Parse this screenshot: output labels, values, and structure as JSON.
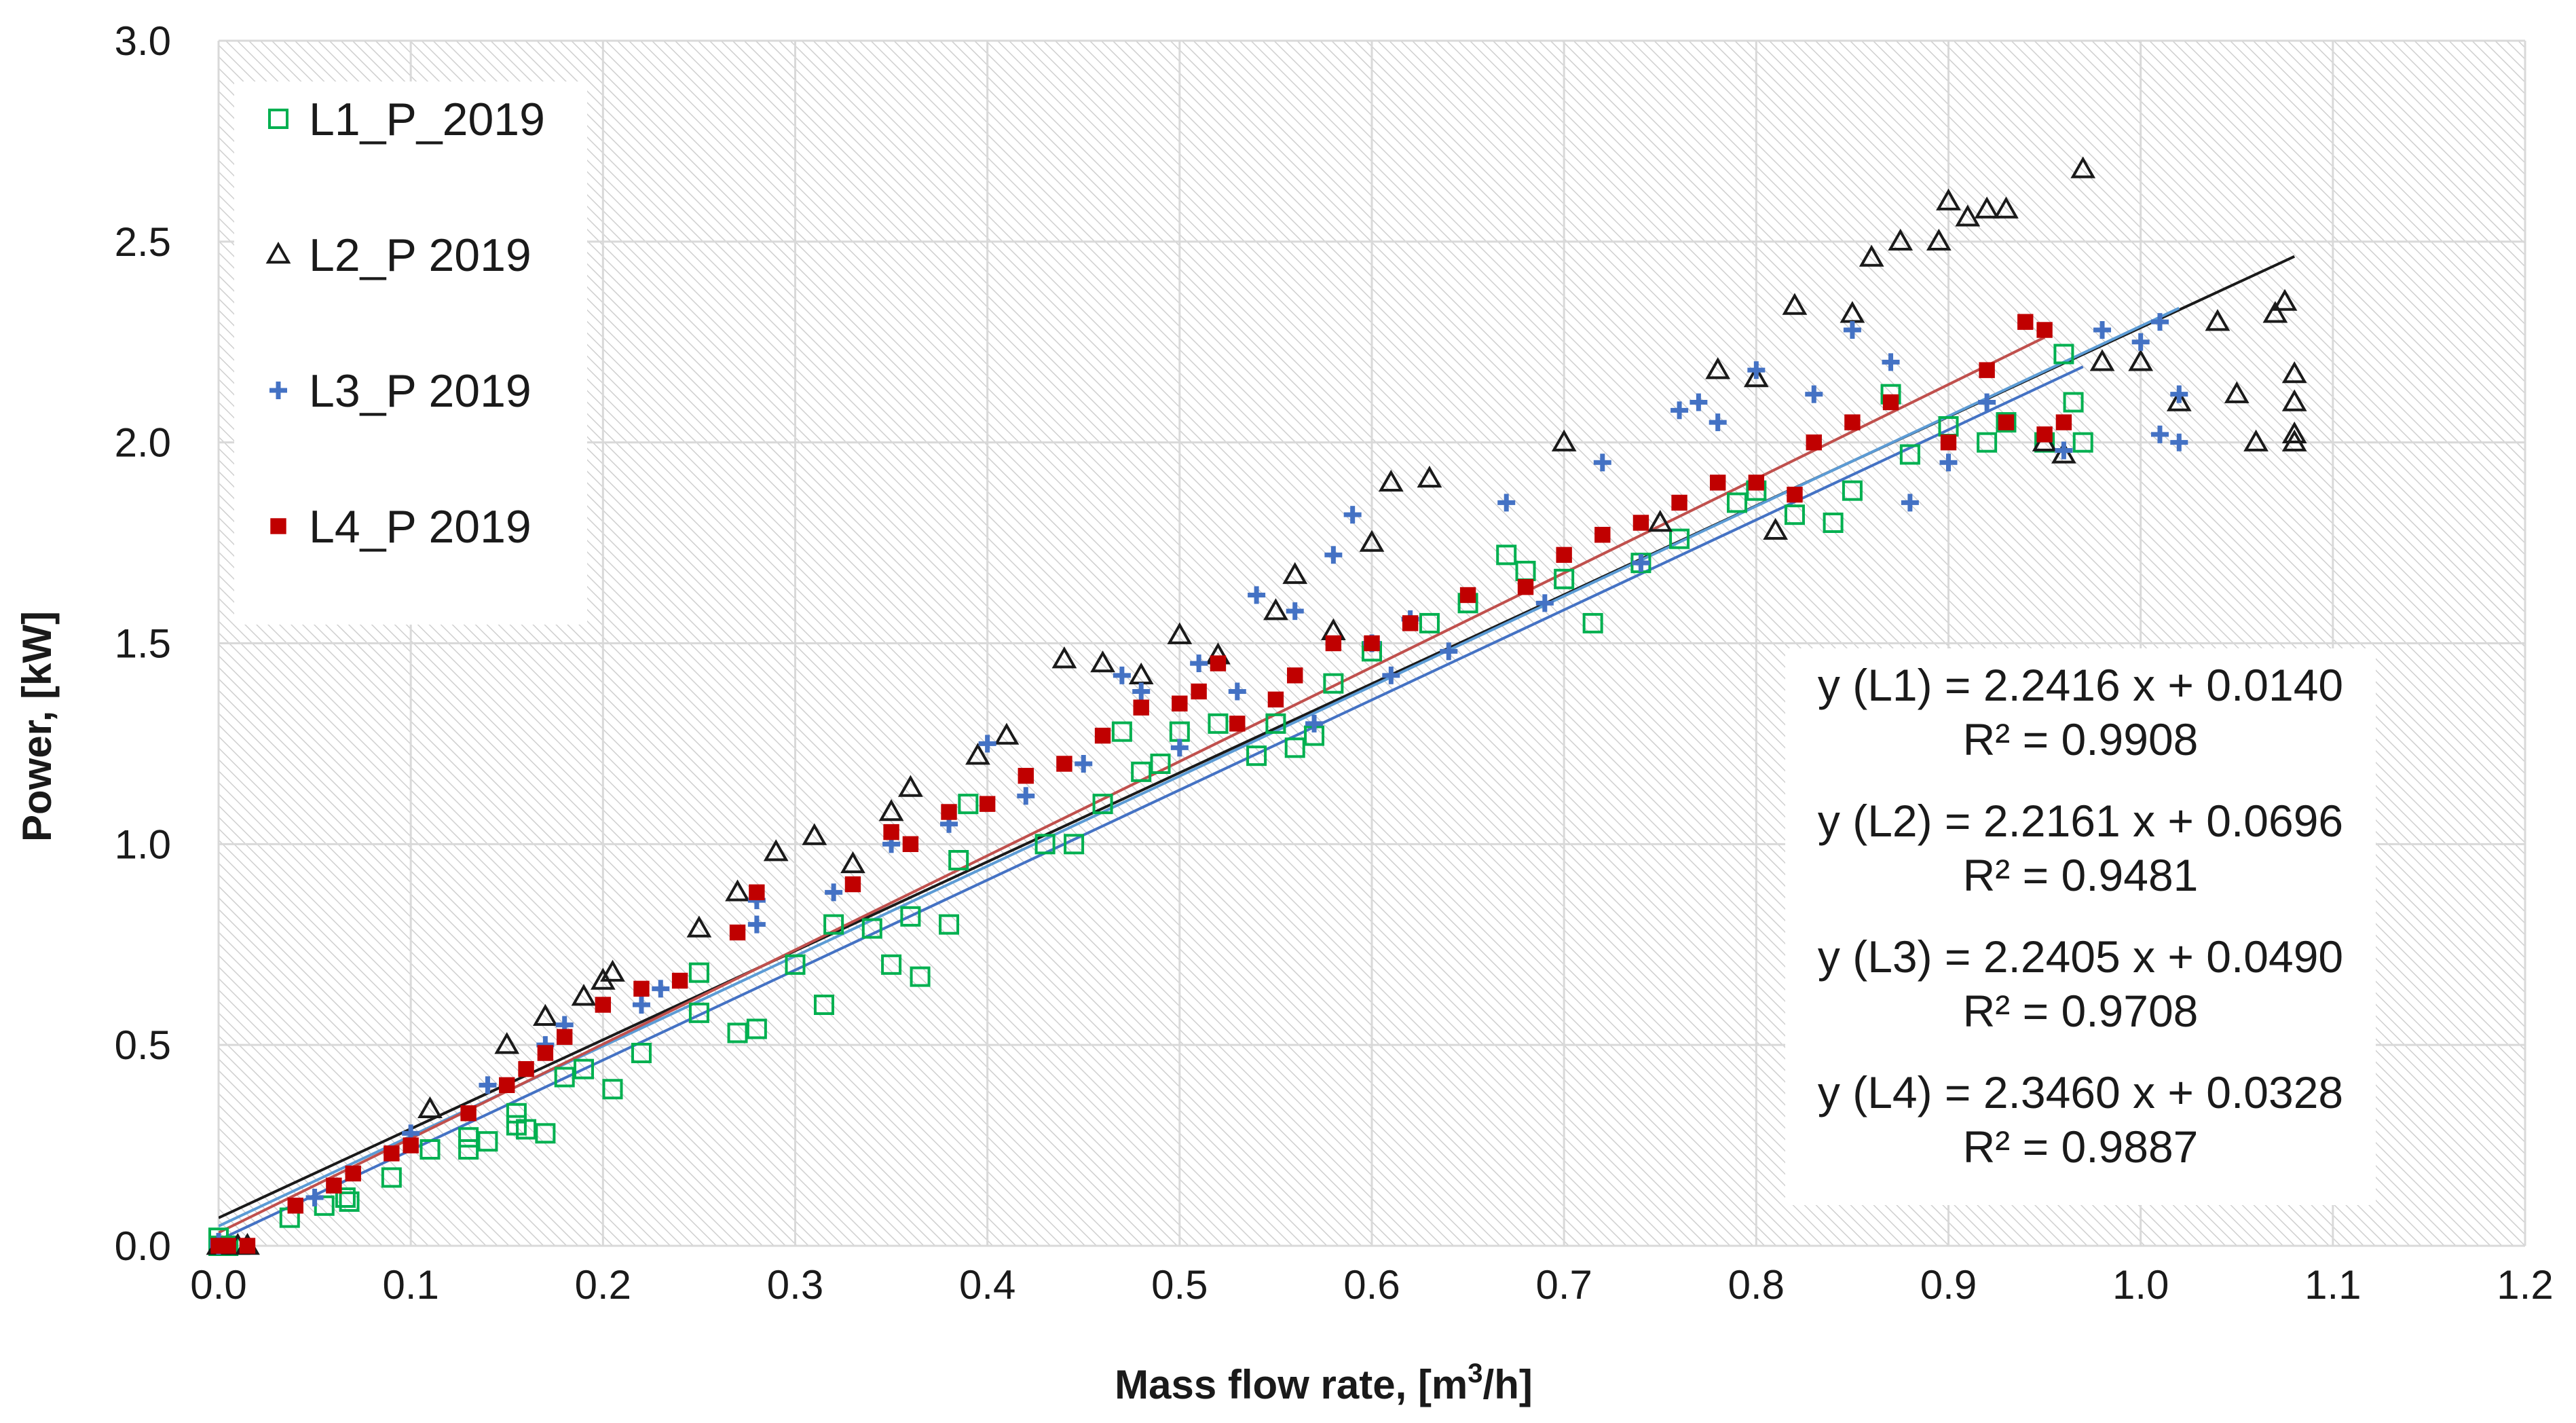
{
  "chart_data": {
    "type": "scatter",
    "title": "",
    "xlabel": "Mass flow rate, [m",
    "xlabel_sup": "3",
    "xlabel_end": "/h]",
    "ylabel": "Power, [kW]",
    "xlim": [
      0,
      1.2
    ],
    "ylim": [
      0,
      3.0
    ],
    "x_ticks": [
      "0.0",
      "0.1",
      "0.2",
      "0.3",
      "0.4",
      "0.5",
      "0.6",
      "0.7",
      "0.8",
      "0.9",
      "1.0",
      "1.1",
      "1.2"
    ],
    "y_ticks": [
      "0.0",
      "0.5",
      "1.0",
      "1.5",
      "2.0",
      "2.5",
      "3.0"
    ],
    "grid": true,
    "legend_position": "top-left",
    "series": [
      {
        "name": "L1_P_2019",
        "marker": "square-open",
        "color": "#00b050",
        "fit": {
          "slope": 2.2416,
          "intercept": 0.014,
          "x_range": [
            0,
            0.97
          ],
          "line_color": "#4472c4"
        },
        "equation": "y (L1) = 2.2416 x + 0.0140",
        "r2": "R² = 0.9908",
        "points": [
          [
            0.0,
            0.0
          ],
          [
            0.0,
            0.02
          ],
          [
            0.005,
            0.0
          ],
          [
            0.037,
            0.07
          ],
          [
            0.055,
            0.1
          ],
          [
            0.066,
            0.12
          ],
          [
            0.068,
            0.11
          ],
          [
            0.09,
            0.17
          ],
          [
            0.11,
            0.24
          ],
          [
            0.13,
            0.24
          ],
          [
            0.13,
            0.27
          ],
          [
            0.14,
            0.26
          ],
          [
            0.155,
            0.33
          ],
          [
            0.155,
            0.3
          ],
          [
            0.16,
            0.29
          ],
          [
            0.17,
            0.28
          ],
          [
            0.18,
            0.42
          ],
          [
            0.19,
            0.44
          ],
          [
            0.205,
            0.39
          ],
          [
            0.22,
            0.48
          ],
          [
            0.25,
            0.58
          ],
          [
            0.25,
            0.68
          ],
          [
            0.27,
            0.53
          ],
          [
            0.28,
            0.54
          ],
          [
            0.3,
            0.7
          ],
          [
            0.315,
            0.6
          ],
          [
            0.32,
            0.8
          ],
          [
            0.34,
            0.79
          ],
          [
            0.35,
            0.7
          ],
          [
            0.36,
            0.82
          ],
          [
            0.365,
            0.67
          ],
          [
            0.38,
            0.8
          ],
          [
            0.385,
            0.96
          ],
          [
            0.39,
            1.1
          ],
          [
            0.43,
            1.0
          ],
          [
            0.445,
            1.0
          ],
          [
            0.46,
            1.1
          ],
          [
            0.47,
            1.28
          ],
          [
            0.48,
            1.18
          ],
          [
            0.49,
            1.2
          ],
          [
            0.5,
            1.28
          ],
          [
            0.52,
            1.3
          ],
          [
            0.54,
            1.22
          ],
          [
            0.55,
            1.3
          ],
          [
            0.56,
            1.24
          ],
          [
            0.57,
            1.27
          ],
          [
            0.58,
            1.4
          ],
          [
            0.6,
            1.48
          ],
          [
            0.63,
            1.55
          ],
          [
            0.65,
            1.6
          ],
          [
            0.67,
            1.72
          ],
          [
            0.68,
            1.68
          ],
          [
            0.7,
            1.66
          ],
          [
            0.715,
            1.55
          ],
          [
            0.74,
            1.7
          ],
          [
            0.76,
            1.76
          ],
          [
            0.79,
            1.85
          ],
          [
            0.8,
            1.88
          ],
          [
            0.82,
            1.82
          ],
          [
            0.84,
            1.8
          ],
          [
            0.85,
            1.88
          ],
          [
            0.87,
            2.12
          ],
          [
            0.88,
            1.97
          ],
          [
            0.9,
            2.04
          ],
          [
            0.92,
            2.0
          ],
          [
            0.93,
            2.05
          ],
          [
            0.95,
            2.0
          ],
          [
            0.96,
            2.22
          ],
          [
            0.965,
            2.1
          ],
          [
            0.97,
            2.0
          ]
        ]
      },
      {
        "name": "L2_P 2019",
        "marker": "triangle-open",
        "color": "#1a1a1a",
        "fit": {
          "slope": 2.2161,
          "intercept": 0.0696,
          "x_range": [
            0,
            1.08
          ],
          "line_color": "#1a1a1a"
        },
        "equation": "y (L2) = 2.2161 x + 0.0696",
        "r2": "R² = 0.9481",
        "points": [
          [
            0.0,
            0.0
          ],
          [
            0.01,
            0.0
          ],
          [
            0.015,
            0.0
          ],
          [
            0.11,
            0.34
          ],
          [
            0.15,
            0.5
          ],
          [
            0.17,
            0.57
          ],
          [
            0.19,
            0.62
          ],
          [
            0.2,
            0.66
          ],
          [
            0.205,
            0.68
          ],
          [
            0.25,
            0.79
          ],
          [
            0.27,
            0.88
          ],
          [
            0.29,
            0.98
          ],
          [
            0.31,
            1.02
          ],
          [
            0.33,
            0.95
          ],
          [
            0.35,
            1.08
          ],
          [
            0.36,
            1.14
          ],
          [
            0.395,
            1.22
          ],
          [
            0.41,
            1.27
          ],
          [
            0.44,
            1.46
          ],
          [
            0.46,
            1.45
          ],
          [
            0.48,
            1.42
          ],
          [
            0.5,
            1.52
          ],
          [
            0.52,
            1.47
          ],
          [
            0.55,
            1.58
          ],
          [
            0.56,
            1.67
          ],
          [
            0.58,
            1.53
          ],
          [
            0.6,
            1.75
          ],
          [
            0.61,
            1.9
          ],
          [
            0.63,
            1.91
          ],
          [
            0.7,
            2.0
          ],
          [
            0.75,
            1.8
          ],
          [
            0.78,
            2.18
          ],
          [
            0.8,
            2.16
          ],
          [
            0.81,
            1.78
          ],
          [
            0.82,
            2.34
          ],
          [
            0.85,
            2.32
          ],
          [
            0.86,
            2.46
          ],
          [
            0.875,
            2.5
          ],
          [
            0.895,
            2.5
          ],
          [
            0.9,
            2.6
          ],
          [
            0.91,
            2.56
          ],
          [
            0.92,
            2.58
          ],
          [
            0.93,
            2.58
          ],
          [
            0.95,
            2.0
          ],
          [
            0.96,
            1.97
          ],
          [
            0.97,
            2.68
          ],
          [
            0.98,
            2.2
          ],
          [
            1.0,
            2.2
          ],
          [
            1.02,
            2.1
          ],
          [
            1.04,
            2.3
          ],
          [
            1.05,
            2.12
          ],
          [
            1.06,
            2.0
          ],
          [
            1.07,
            2.32
          ],
          [
            1.075,
            2.35
          ],
          [
            1.08,
            2.02
          ],
          [
            1.08,
            2.17
          ],
          [
            1.08,
            2.0
          ],
          [
            1.08,
            2.1
          ]
        ]
      },
      {
        "name": "L3_P 2019",
        "marker": "plus",
        "color": "#4472c4",
        "fit": {
          "slope": 2.2405,
          "intercept": 0.049,
          "x_range": [
            0,
            1.02
          ],
          "line_color": "#5b9bd5"
        },
        "equation": "y (L3) = 2.2405 x + 0.0490",
        "r2": "R² = 0.9708",
        "points": [
          [
            0.0,
            0.0
          ],
          [
            0.0,
            0.01
          ],
          [
            0.05,
            0.12
          ],
          [
            0.1,
            0.28
          ],
          [
            0.14,
            0.4
          ],
          [
            0.17,
            0.5
          ],
          [
            0.18,
            0.55
          ],
          [
            0.22,
            0.6
          ],
          [
            0.23,
            0.64
          ],
          [
            0.28,
            0.8
          ],
          [
            0.28,
            0.86
          ],
          [
            0.32,
            0.88
          ],
          [
            0.35,
            1.0
          ],
          [
            0.38,
            1.05
          ],
          [
            0.4,
            1.25
          ],
          [
            0.42,
            1.12
          ],
          [
            0.45,
            1.2
          ],
          [
            0.47,
            1.42
          ],
          [
            0.48,
            1.38
          ],
          [
            0.5,
            1.24
          ],
          [
            0.51,
            1.45
          ],
          [
            0.53,
            1.38
          ],
          [
            0.54,
            1.62
          ],
          [
            0.56,
            1.58
          ],
          [
            0.57,
            1.3
          ],
          [
            0.58,
            1.72
          ],
          [
            0.59,
            1.82
          ],
          [
            0.6,
            1.5
          ],
          [
            0.61,
            1.42
          ],
          [
            0.62,
            1.56
          ],
          [
            0.64,
            1.48
          ],
          [
            0.67,
            1.85
          ],
          [
            0.69,
            1.6
          ],
          [
            0.72,
            1.95
          ],
          [
            0.74,
            1.7
          ],
          [
            0.76,
            2.08
          ],
          [
            0.77,
            2.1
          ],
          [
            0.78,
            2.05
          ],
          [
            0.8,
            2.18
          ],
          [
            0.83,
            2.12
          ],
          [
            0.85,
            2.28
          ],
          [
            0.87,
            2.2
          ],
          [
            0.88,
            1.85
          ],
          [
            0.9,
            1.95
          ],
          [
            0.92,
            2.1
          ],
          [
            0.96,
            1.98
          ],
          [
            0.98,
            2.28
          ],
          [
            1.0,
            2.25
          ],
          [
            1.01,
            2.3
          ],
          [
            1.01,
            2.02
          ],
          [
            1.02,
            2.12
          ],
          [
            1.02,
            2.0
          ]
        ]
      },
      {
        "name": "L4_P  2019",
        "marker": "square-filled",
        "color": "#c00000",
        "fit": {
          "slope": 2.346,
          "intercept": 0.0328,
          "x_range": [
            0,
            0.95
          ],
          "line_color": "#c0504d"
        },
        "equation": "y (L4) = 2.3460 x + 0.0328",
        "r2": "R² = 0.9887",
        "points": [
          [
            0.0,
            0.0
          ],
          [
            0.005,
            0.0
          ],
          [
            0.015,
            0.0
          ],
          [
            0.04,
            0.1
          ],
          [
            0.06,
            0.15
          ],
          [
            0.07,
            0.18
          ],
          [
            0.09,
            0.23
          ],
          [
            0.1,
            0.25
          ],
          [
            0.13,
            0.33
          ],
          [
            0.15,
            0.4
          ],
          [
            0.16,
            0.44
          ],
          [
            0.17,
            0.48
          ],
          [
            0.18,
            0.52
          ],
          [
            0.2,
            0.6
          ],
          [
            0.22,
            0.64
          ],
          [
            0.24,
            0.66
          ],
          [
            0.27,
            0.78
          ],
          [
            0.28,
            0.88
          ],
          [
            0.33,
            0.9
          ],
          [
            0.35,
            1.03
          ],
          [
            0.36,
            1.0
          ],
          [
            0.38,
            1.08
          ],
          [
            0.4,
            1.1
          ],
          [
            0.42,
            1.17
          ],
          [
            0.44,
            1.2
          ],
          [
            0.46,
            1.27
          ],
          [
            0.48,
            1.34
          ],
          [
            0.5,
            1.35
          ],
          [
            0.51,
            1.38
          ],
          [
            0.52,
            1.45
          ],
          [
            0.53,
            1.3
          ],
          [
            0.55,
            1.36
          ],
          [
            0.56,
            1.42
          ],
          [
            0.58,
            1.5
          ],
          [
            0.6,
            1.5
          ],
          [
            0.62,
            1.55
          ],
          [
            0.65,
            1.62
          ],
          [
            0.68,
            1.64
          ],
          [
            0.7,
            1.72
          ],
          [
            0.72,
            1.77
          ],
          [
            0.74,
            1.8
          ],
          [
            0.76,
            1.85
          ],
          [
            0.78,
            1.9
          ],
          [
            0.8,
            1.9
          ],
          [
            0.82,
            1.87
          ],
          [
            0.83,
            2.0
          ],
          [
            0.85,
            2.05
          ],
          [
            0.87,
            2.1
          ],
          [
            0.9,
            2.0
          ],
          [
            0.92,
            2.18
          ],
          [
            0.93,
            2.05
          ],
          [
            0.94,
            2.3
          ],
          [
            0.95,
            2.28
          ],
          [
            0.95,
            2.02
          ],
          [
            0.96,
            2.05
          ]
        ]
      }
    ]
  }
}
